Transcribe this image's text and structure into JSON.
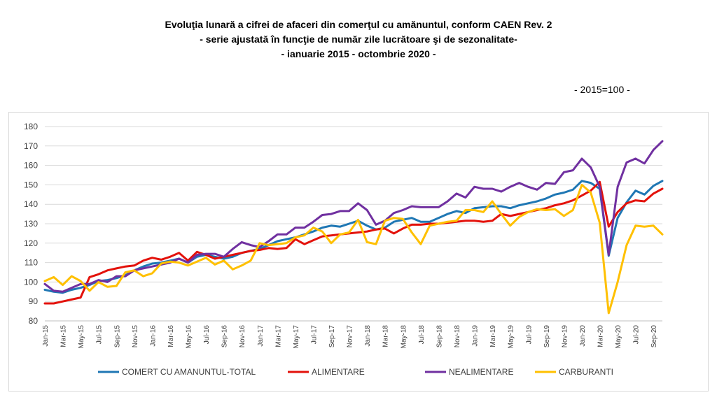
{
  "header": {
    "title_line1": "Evoluţia lunară a cifrei de afaceri din comerţul cu amănuntul,  conform CAEN Rev. 2",
    "title_line2": "- serie ajustată în funcţie de număr zile lucrătoare şi de sezonalitate-",
    "title_line3": "- ianuarie 2015 -  octombrie 2020  -",
    "base_note": "- 2015=100 -"
  },
  "chart_data": {
    "type": "line",
    "title": "",
    "xlabel": "",
    "ylabel": "",
    "ylim": [
      80,
      180
    ],
    "yticks": [
      80,
      90,
      100,
      110,
      120,
      130,
      140,
      150,
      160,
      170,
      180
    ],
    "grid": true,
    "legend_position": "bottom",
    "x": [
      "Jan-15",
      "Feb-15",
      "Mar-15",
      "Apr-15",
      "May-15",
      "Jun-15",
      "Jul-15",
      "Aug-15",
      "Sep-15",
      "Oct-15",
      "Nov-15",
      "Dec-15",
      "Jan-16",
      "Feb-16",
      "Mar-16",
      "Apr-16",
      "May-16",
      "Jun-16",
      "Jul-16",
      "Aug-16",
      "Sep-16",
      "Oct-16",
      "Nov-16",
      "Dec-16",
      "Jan-17",
      "Feb-17",
      "Mar-17",
      "Apr-17",
      "May-17",
      "Jun-17",
      "Jul-17",
      "Aug-17",
      "Sep-17",
      "Oct-17",
      "Nov-17",
      "Dec-17",
      "Jan-18",
      "Feb-18",
      "Mar-18",
      "Apr-18",
      "May-18",
      "Jun-18",
      "Jul-18",
      "Aug-18",
      "Sep-18",
      "Oct-18",
      "Nov-18",
      "Dec-18",
      "Jan-19",
      "Feb-19",
      "Mar-19",
      "Apr-19",
      "May-19",
      "Jun-19",
      "Jul-19",
      "Aug-19",
      "Sep-19",
      "Oct-19",
      "Nov-19",
      "Dec-19",
      "Jan-20",
      "Feb-20",
      "Mar-20",
      "Apr-20",
      "May-20",
      "Jun-20",
      "Jul-20",
      "Aug-20",
      "Sep-20",
      "Oct-20"
    ],
    "series": [
      {
        "name": "COMERT CU AMANUNTUL-TOTAL",
        "color": "#1f77b4",
        "values": [
          96,
          95,
          94.5,
          96,
          97,
          98.5,
          100.5,
          101,
          102,
          103.5,
          106,
          108,
          109.5,
          110,
          111,
          112,
          110,
          113,
          114,
          113,
          112,
          113,
          115,
          116,
          117,
          119,
          121,
          122,
          123,
          124.5,
          126,
          128,
          129,
          128.5,
          130,
          131.5,
          129,
          127,
          128,
          131,
          132,
          133,
          131,
          131,
          133,
          135,
          136.5,
          135.5,
          138,
          138.5,
          139,
          139,
          138,
          139.5,
          140.5,
          141.5,
          143,
          145,
          146,
          147.5,
          152,
          151,
          148,
          113.5,
          133,
          141,
          147,
          145,
          149.5,
          152
        ]
      },
      {
        "name": "ALIMENTARE",
        "color": "#e3120b",
        "values": [
          89,
          89,
          90,
          91,
          92,
          102.5,
          104,
          106,
          107,
          108,
          108.5,
          111,
          112.5,
          111.5,
          113,
          115,
          111,
          115.5,
          114,
          112,
          113,
          114,
          115,
          116,
          116.5,
          117.5,
          117,
          117.5,
          122,
          119.5,
          121.5,
          123.5,
          124,
          124.5,
          125,
          125.5,
          126,
          127,
          127.5,
          125,
          127.5,
          129.5,
          129.5,
          130,
          130,
          130.5,
          131,
          131.5,
          131.5,
          131,
          131.5,
          135,
          134,
          135,
          136,
          137,
          138,
          139.5,
          140.5,
          142,
          144.5,
          147,
          151.5,
          128.5,
          136,
          140.5,
          142,
          141.5,
          145.5,
          148
        ]
      },
      {
        "name": "NEALIMENTARE",
        "color": "#7030a0",
        "values": [
          99,
          95.5,
          95,
          97,
          99,
          99,
          101,
          100,
          103,
          103,
          106,
          107,
          108,
          109,
          110,
          112,
          110,
          114,
          114.5,
          114.5,
          113,
          117,
          120.5,
          119,
          118,
          121,
          124.5,
          124.5,
          128,
          128,
          131,
          134.5,
          135,
          136.5,
          136.5,
          140.5,
          137,
          129.5,
          131.5,
          135.5,
          137,
          139,
          138.5,
          138.5,
          138.5,
          141.5,
          145.5,
          143.5,
          149,
          148,
          148,
          146.5,
          149,
          151,
          149,
          147.5,
          151,
          150.5,
          156.5,
          157.5,
          163.5,
          159,
          149,
          114,
          149,
          161.5,
          163.5,
          161,
          168,
          172.5
        ]
      },
      {
        "name": "CARBURANTI",
        "color": "#ffc000",
        "values": [
          100.5,
          102.5,
          98.5,
          103,
          100.5,
          95.5,
          100,
          97.5,
          98,
          105,
          106,
          103,
          104.5,
          109.5,
          110.5,
          110,
          108.5,
          110.5,
          112.5,
          109,
          111,
          106.5,
          108.5,
          111,
          120,
          119,
          119.5,
          120,
          123,
          124,
          128,
          126,
          120,
          124.5,
          125.5,
          132,
          120.5,
          119.5,
          131.5,
          133,
          132.5,
          125.5,
          119.5,
          129,
          130,
          131,
          131.5,
          137,
          137,
          136,
          141.5,
          135,
          129,
          133.5,
          136,
          137.5,
          137,
          137.5,
          134,
          137,
          150,
          146,
          130.5,
          84,
          100,
          119,
          129,
          128.5,
          129,
          124.5
        ]
      }
    ]
  }
}
